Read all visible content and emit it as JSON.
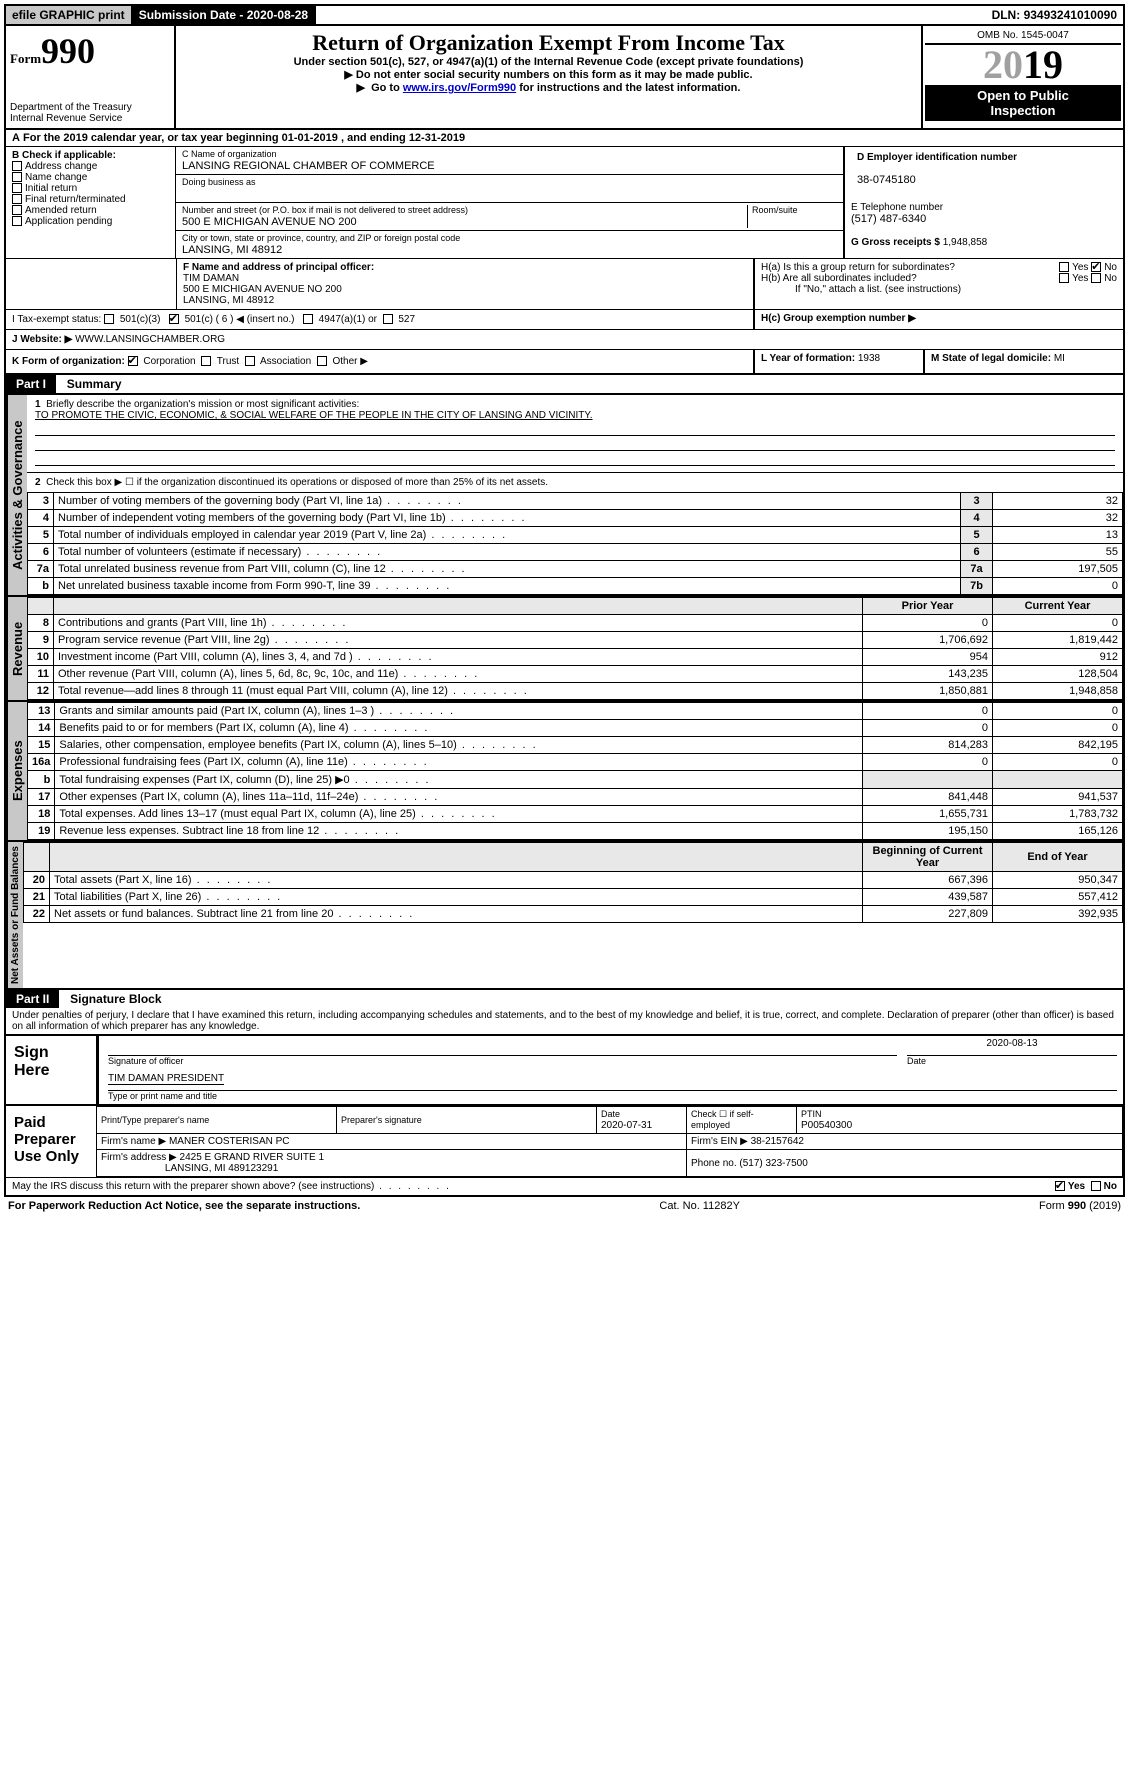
{
  "topbar": {
    "efile": "efile GRAPHIC print",
    "subdate_lbl": "Submission Date - ",
    "subdate": "2020-08-28",
    "dln_lbl": "DLN: ",
    "dln": "93493241010090"
  },
  "header": {
    "form_prefix": "Form",
    "form_no": "990",
    "dept1": "Department of the Treasury",
    "dept2": "Internal Revenue Service",
    "title": "Return of Organization Exempt From Income Tax",
    "subtitle": "Under section 501(c), 527, or 4947(a)(1) of the Internal Revenue Code (except private foundations)",
    "note1": "Do not enter social security numbers on this form as it may be made public.",
    "note2_pre": "Go to ",
    "note2_link": "www.irs.gov/Form990",
    "note2_post": " for instructions and the latest information.",
    "omb": "OMB No. 1545-0047",
    "year_prefix": "20",
    "year_suffix": "19",
    "open1": "Open to Public",
    "open2": "Inspection"
  },
  "period": {
    "lbl_a": "A",
    "text": "For the 2019 calendar year, or tax year beginning ",
    "begin": "01-01-2019",
    "mid": " , and ending ",
    "end": "12-31-2019"
  },
  "boxB": {
    "hdr": "B Check if applicable:",
    "items": [
      "Address change",
      "Name change",
      "Initial return",
      "Final return/terminated",
      "Amended return",
      "Application pending"
    ]
  },
  "boxC": {
    "name_lbl": "C Name of organization",
    "name": "LANSING REGIONAL CHAMBER OF COMMERCE",
    "dba_lbl": "Doing business as",
    "addr_lbl": "Number and street (or P.O. box if mail is not delivered to street address)",
    "room_lbl": "Room/suite",
    "addr": "500 E MICHIGAN AVENUE NO 200",
    "city_lbl": "City or town, state or province, country, and ZIP or foreign postal code",
    "city": "LANSING, MI  48912"
  },
  "boxD": {
    "lbl": "D Employer identification number",
    "val": "38-0745180"
  },
  "boxE": {
    "lbl": "E Telephone number",
    "val": "(517) 487-6340"
  },
  "boxG": {
    "lbl": "G Gross receipts $ ",
    "val": "1,948,858"
  },
  "boxF": {
    "lbl": "F  Name and address of principal officer:",
    "name": "TIM DAMAN",
    "addr1": "500 E MICHIGAN AVENUE NO 200",
    "addr2": "LANSING, MI  48912"
  },
  "boxH": {
    "a": "H(a)  Is this a group return for subordinates?",
    "b": "H(b)  Are all subordinates included?",
    "bnote": "If \"No,\" attach a list. (see instructions)",
    "c": "H(c)  Group exemption number ▶",
    "yes": "Yes",
    "no": "No"
  },
  "boxI": {
    "lbl": "I     Tax-exempt status:",
    "c3": "501(c)(3)",
    "c": "501(c) ( 6 ) ◀ (insert no.)",
    "a4947": "4947(a)(1) or",
    "s527": "527"
  },
  "boxJ": {
    "lbl": "J     Website: ▶  ",
    "val": "WWW.LANSINGCHAMBER.ORG"
  },
  "boxK": {
    "lbl": "K Form of organization:",
    "corp": "Corporation",
    "trust": "Trust",
    "assoc": "Association",
    "other": "Other ▶"
  },
  "boxL": {
    "lbl": "L Year of formation: ",
    "val": "1938"
  },
  "boxM": {
    "lbl": "M State of legal domicile: ",
    "val": "MI"
  },
  "part1": {
    "hdr": "Part I",
    "title": "Summary",
    "q1_lbl": "1",
    "q1": "Briefly describe the organization's mission or most significant activities:",
    "q1_ans": "TO PROMOTE THE CIVIC, ECONOMIC, & SOCIAL WELFARE OF THE PEOPLE IN THE CITY OF LANSING AND VICINITY.",
    "q2": "Check this box ▶ ☐  if the organization discontinued its operations or disposed of more than 25% of its net assets.",
    "tabs": {
      "gov": "Activities & Governance",
      "rev": "Revenue",
      "exp": "Expenses",
      "net": "Net Assets or Fund Balances"
    },
    "rows_gov": [
      {
        "n": "3",
        "t": "Number of voting members of the governing body (Part VI, line 1a)",
        "box": "3",
        "v": "32"
      },
      {
        "n": "4",
        "t": "Number of independent voting members of the governing body (Part VI, line 1b)",
        "box": "4",
        "v": "32"
      },
      {
        "n": "5",
        "t": "Total number of individuals employed in calendar year 2019 (Part V, line 2a)",
        "box": "5",
        "v": "13"
      },
      {
        "n": "6",
        "t": "Total number of volunteers (estimate if necessary)",
        "box": "6",
        "v": "55"
      },
      {
        "n": "7a",
        "t": "Total unrelated business revenue from Part VIII, column (C), line 12",
        "box": "7a",
        "v": "197,505"
      },
      {
        "n": "b",
        "t": "Net unrelated business taxable income from Form 990-T, line 39",
        "box": "7b",
        "v": "0"
      }
    ],
    "col_prior": "Prior Year",
    "col_current": "Current Year",
    "rows_rev": [
      {
        "n": "8",
        "t": "Contributions and grants (Part VIII, line 1h)",
        "p": "0",
        "c": "0"
      },
      {
        "n": "9",
        "t": "Program service revenue (Part VIII, line 2g)",
        "p": "1,706,692",
        "c": "1,819,442"
      },
      {
        "n": "10",
        "t": "Investment income (Part VIII, column (A), lines 3, 4, and 7d )",
        "p": "954",
        "c": "912"
      },
      {
        "n": "11",
        "t": "Other revenue (Part VIII, column (A), lines 5, 6d, 8c, 9c, 10c, and 11e)",
        "p": "143,235",
        "c": "128,504"
      },
      {
        "n": "12",
        "t": "Total revenue—add lines 8 through 11 (must equal Part VIII, column (A), line 12)",
        "p": "1,850,881",
        "c": "1,948,858"
      }
    ],
    "rows_exp": [
      {
        "n": "13",
        "t": "Grants and similar amounts paid (Part IX, column (A), lines 1–3 )",
        "p": "0",
        "c": "0"
      },
      {
        "n": "14",
        "t": "Benefits paid to or for members (Part IX, column (A), line 4)",
        "p": "0",
        "c": "0"
      },
      {
        "n": "15",
        "t": "Salaries, other compensation, employee benefits (Part IX, column (A), lines 5–10)",
        "p": "814,283",
        "c": "842,195"
      },
      {
        "n": "16a",
        "t": "Professional fundraising fees (Part IX, column (A), line 11e)",
        "p": "0",
        "c": "0"
      },
      {
        "n": "b",
        "t": "Total fundraising expenses (Part IX, column (D), line 25) ▶0",
        "p": "",
        "c": ""
      },
      {
        "n": "17",
        "t": "Other expenses (Part IX, column (A), lines 11a–11d, 11f–24e)",
        "p": "841,448",
        "c": "941,537"
      },
      {
        "n": "18",
        "t": "Total expenses. Add lines 13–17 (must equal Part IX, column (A), line 25)",
        "p": "1,655,731",
        "c": "1,783,732"
      },
      {
        "n": "19",
        "t": "Revenue less expenses. Subtract line 18 from line 12",
        "p": "195,150",
        "c": "165,126"
      }
    ],
    "col_begin": "Beginning of Current Year",
    "col_end": "End of Year",
    "rows_net": [
      {
        "n": "20",
        "t": "Total assets (Part X, line 16)",
        "p": "667,396",
        "c": "950,347"
      },
      {
        "n": "21",
        "t": "Total liabilities (Part X, line 26)",
        "p": "439,587",
        "c": "557,412"
      },
      {
        "n": "22",
        "t": "Net assets or fund balances. Subtract line 21 from line 20",
        "p": "227,809",
        "c": "392,935"
      }
    ]
  },
  "part2": {
    "hdr": "Part II",
    "title": "Signature Block",
    "decl": "Under penalties of perjury, I declare that I have examined this return, including accompanying schedules and statements, and to the best of my knowledge and belief, it is true, correct, and complete. Declaration of preparer (other than officer) is based on all information of which preparer has any knowledge."
  },
  "sign": {
    "here": "Sign Here",
    "sig_lbl": "Signature of officer",
    "date_lbl": "Date",
    "date": "2020-08-13",
    "name": "TIM DAMAN  PRESIDENT",
    "name_lbl": "Type or print name and title"
  },
  "paid": {
    "hdr": "Paid Preparer Use Only",
    "pname_lbl": "Print/Type preparer's name",
    "psig_lbl": "Preparer's signature",
    "pdate_lbl": "Date",
    "pdate": "2020-07-31",
    "pself_lbl": "Check ☐ if self-employed",
    "ptin_lbl": "PTIN",
    "ptin": "P00540300",
    "firm_lbl": "Firm's name      ▶",
    "firm": "MANER COSTERISAN PC",
    "fein_lbl": "Firm's EIN ▶",
    "fein": "38-2157642",
    "faddr_lbl": "Firm's address ▶",
    "faddr1": "2425 E GRAND RIVER SUITE 1",
    "faddr2": "LANSING, MI  489123291",
    "phone_lbl": "Phone no. ",
    "phone": "(517) 323-7500"
  },
  "discuss": {
    "q": "May the IRS discuss this return with the preparer shown above? (see instructions)",
    "yes": "Yes",
    "no": "No"
  },
  "footer": {
    "pra": "For Paperwork Reduction Act Notice, see the separate instructions.",
    "cat": "Cat. No. 11282Y",
    "form": "Form 990 (2019)"
  }
}
